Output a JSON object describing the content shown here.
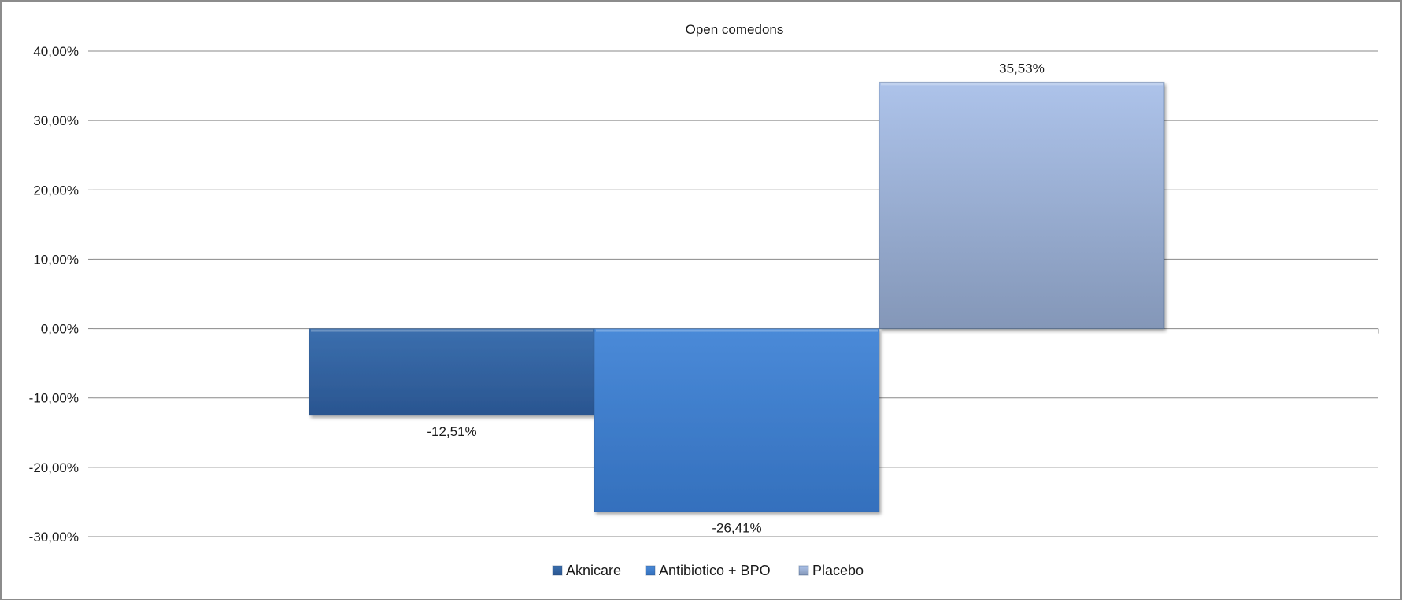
{
  "chart_data": {
    "type": "bar",
    "title": "Open comedons",
    "xlabel": "",
    "ylabel": "",
    "ylim": [
      -30,
      40
    ],
    "yticks": [
      40,
      30,
      20,
      10,
      0,
      -10,
      -20,
      -30
    ],
    "ytick_labels": [
      "40,00%",
      "30,00%",
      "20,00%",
      "10,00%",
      "0,00%",
      "-10,00%",
      "-20,00%",
      "-30,00%"
    ],
    "grid": true,
    "legend_position": "bottom",
    "series": [
      {
        "name": "Aknicare",
        "value": -12.51,
        "label": "-12,51%",
        "color_top": "#3b6fae",
        "color_bottom": "#2a5590"
      },
      {
        "name": "Antibiotico + BPO",
        "value": -26.41,
        "label": "-26,41%",
        "color_top": "#4a8ad8",
        "color_bottom": "#3470bd"
      },
      {
        "name": "Placebo",
        "value": 35.53,
        "label": "35,53%",
        "color_top": "#adc3ea",
        "color_bottom": "#8497b8"
      }
    ]
  }
}
